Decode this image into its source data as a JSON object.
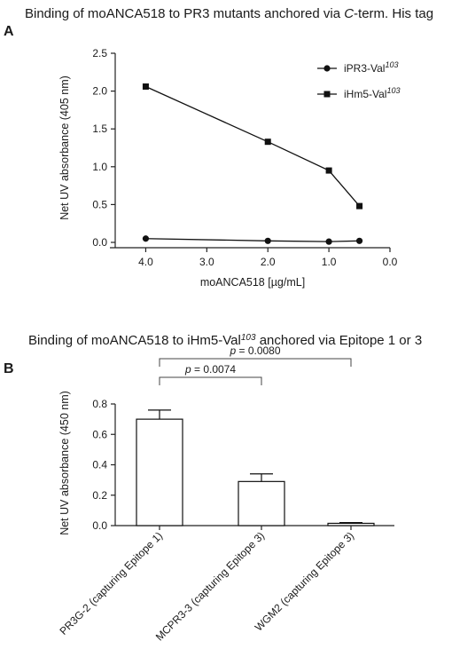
{
  "chart_data": [
    {
      "panel": "A",
      "type": "line",
      "title": "Binding of moANCA518 to PR3 mutants anchored via C-term. His tag",
      "title_parts": {
        "pre": "Binding of moANCA518 to PR3 mutants anchored via ",
        "italic": "C",
        "post": "-term. His tag"
      },
      "xlabel": "moANCA518 [µg/mL]",
      "ylabel": "Net UV absorbance (405 nm)",
      "xlim": [
        4.5,
        0.0
      ],
      "ylim": [
        0,
        2.5
      ],
      "x_reversed": true,
      "xticks": [
        "4.0",
        "3.0",
        "2.0",
        "1.0",
        "0.0"
      ],
      "yticks": [
        "0.0",
        "0.5",
        "1.0",
        "1.5",
        "2.0",
        "2.5"
      ],
      "legend_position": "top-right",
      "series": [
        {
          "name": "iPR3-Val103",
          "name_base": "iPR3-Val",
          "name_sup": "103",
          "marker": "circle",
          "x": [
            4.0,
            2.0,
            1.0,
            0.5
          ],
          "y": [
            0.05,
            0.02,
            0.01,
            0.02
          ]
        },
        {
          "name": "iHm5-Val103",
          "name_base": "iHm5-Val",
          "name_sup": "103",
          "marker": "square",
          "x": [
            4.0,
            2.0,
            1.0,
            0.5
          ],
          "y": [
            2.06,
            1.33,
            0.95,
            0.48
          ]
        }
      ]
    },
    {
      "panel": "B",
      "type": "bar",
      "title": "Binding of moANCA518 to iHm5-Val103 anchored via Epitope 1 or 3",
      "title_parts": {
        "pre": "Binding of moANCA518 to iHm5-Val",
        "sup": "103",
        "post": " anchored via Epitope 1 or 3"
      },
      "ylabel": "Net UV absorbance (450 nm)",
      "ylim": [
        0,
        0.8
      ],
      "yticks": [
        "0.0",
        "0.2",
        "0.4",
        "0.6",
        "0.8"
      ],
      "categories": [
        "PR3G-2 (capturing Epitope 1)",
        "MCPR3-3 (capturing Epitope 3)",
        "WGM2 (capturing Epitope 3)"
      ],
      "values": [
        0.7,
        0.29,
        0.015
      ],
      "errors": [
        0.06,
        0.05,
        0.005
      ],
      "comparisons": [
        {
          "from": 0,
          "to": 1,
          "label_p": "p",
          "label_value": " = 0.0074"
        },
        {
          "from": 0,
          "to": 2,
          "label_p": "p",
          "label_value": " = 0.0080"
        }
      ]
    }
  ]
}
